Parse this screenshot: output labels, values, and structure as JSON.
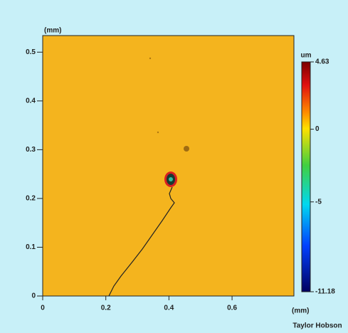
{
  "chart_data": {
    "type": "heatmap",
    "x_label": "(mm)",
    "y_label": "(mm)",
    "xlim": [
      0,
      0.796
    ],
    "xticks": [
      0,
      0.2,
      0.4,
      0.6
    ],
    "ylim": [
      0,
      0.534
    ],
    "yticks": [
      0,
      0.1,
      0.2,
      0.3,
      0.4,
      0.5
    ],
    "colorbar": {
      "label": "um",
      "lim": [
        -11.18,
        4.63
      ],
      "ticks": [
        4.63,
        0,
        -5,
        -11.18
      ]
    },
    "annotations": [
      "Taylor Hobson"
    ]
  }
}
